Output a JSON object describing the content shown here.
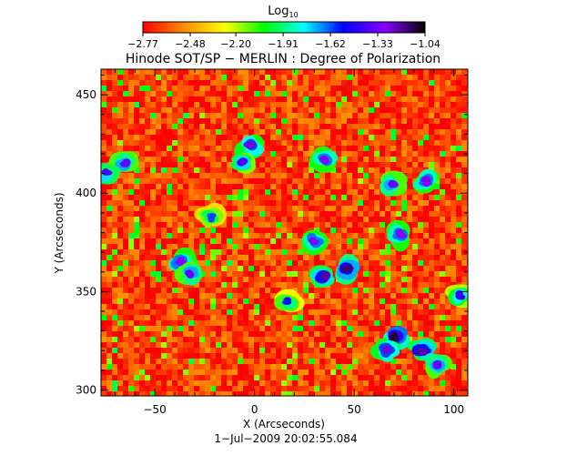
{
  "chart_data": {
    "type": "heatmap",
    "title": "Hinode SOT/SP − MERLIN : Degree of Polarization",
    "subtitle": "1−Jul−2009 20:02:55.084",
    "xlabel": "X (Arcseconds)",
    "ylabel": "Y (Arcseconds)",
    "xlim": [
      -77,
      107
    ],
    "ylim": [
      297,
      463
    ],
    "x_ticks": [
      {
        "value": -50,
        "label": "−50"
      },
      {
        "value": 0,
        "label": "0"
      },
      {
        "value": 50,
        "label": "50"
      },
      {
        "value": 100,
        "label": "100"
      }
    ],
    "y_ticks": [
      {
        "value": 300,
        "label": "300"
      },
      {
        "value": 350,
        "label": "350"
      },
      {
        "value": 400,
        "label": "400"
      },
      {
        "value": 450,
        "label": "450"
      }
    ],
    "colorbar": {
      "title_main": "Log",
      "title_sub": "10",
      "range": [
        -2.77,
        -1.04
      ],
      "ticks": [
        {
          "value": -2.77,
          "label": "−2.77"
        },
        {
          "value": -2.48,
          "label": "−2.48"
        },
        {
          "value": -2.2,
          "label": "−2.20"
        },
        {
          "value": -1.91,
          "label": "−1.91"
        },
        {
          "value": -1.62,
          "label": "−1.62"
        },
        {
          "value": -1.33,
          "label": "−1.33"
        },
        {
          "value": -1.04,
          "label": "−1.04"
        }
      ],
      "colors": [
        "#ff0000",
        "#ff8800",
        "#ffff00",
        "#00ff00",
        "#00ffff",
        "#0000ff",
        "#8800ff",
        "#000000"
      ]
    },
    "background_value": -2.65,
    "high_polarization_regions": [
      {
        "x": 35,
        "y": 358,
        "value": -1.2
      },
      {
        "x": 47,
        "y": 361,
        "value": -1.15
      },
      {
        "x": 30,
        "y": 376,
        "value": -1.3
      },
      {
        "x": 70,
        "y": 327,
        "value": -1.1
      },
      {
        "x": 66,
        "y": 320,
        "value": -1.25
      },
      {
        "x": 84,
        "y": 320,
        "value": -1.2
      },
      {
        "x": 92,
        "y": 313,
        "value": -1.35
      },
      {
        "x": 73,
        "y": 379,
        "value": -1.3
      },
      {
        "x": -2,
        "y": 424,
        "value": -1.25
      },
      {
        "x": -6,
        "y": 416,
        "value": -1.4
      },
      {
        "x": -37,
        "y": 365,
        "value": -1.3
      },
      {
        "x": -32,
        "y": 359,
        "value": -1.35
      },
      {
        "x": -65,
        "y": 415,
        "value": -1.35
      },
      {
        "x": -74,
        "y": 410,
        "value": -1.4
      },
      {
        "x": 35,
        "y": 417,
        "value": -1.3
      },
      {
        "x": 69,
        "y": 405,
        "value": -1.35
      },
      {
        "x": 86,
        "y": 406,
        "value": -1.3
      },
      {
        "x": 103,
        "y": 348,
        "value": -1.45
      },
      {
        "x": 17,
        "y": 345,
        "value": -1.55
      },
      {
        "x": -22,
        "y": 388,
        "value": -1.6
      }
    ]
  }
}
